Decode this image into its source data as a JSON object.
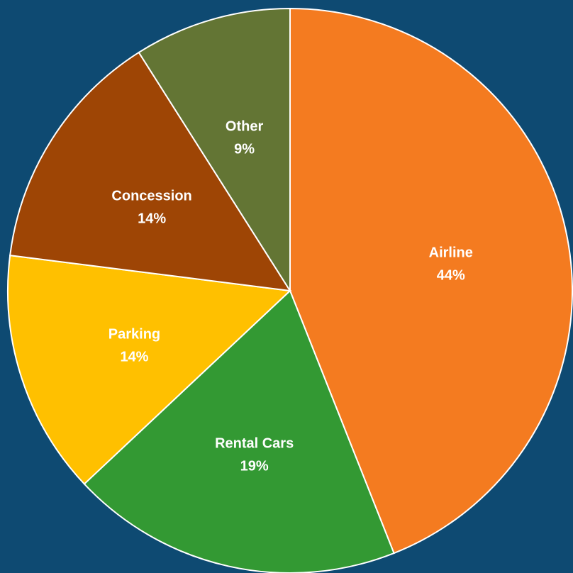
{
  "chart_data": {
    "type": "pie",
    "categories": [
      "Airline",
      "Rental Cars",
      "Parking",
      "Concession",
      "Other"
    ],
    "values": [
      44,
      19,
      14,
      14,
      9
    ],
    "value_labels": [
      "44%",
      "19%",
      "14%",
      "14%",
      "9%"
    ],
    "colors": [
      "#f47b20",
      "#339933",
      "#ffc000",
      "#9e4505",
      "#637534"
    ]
  }
}
